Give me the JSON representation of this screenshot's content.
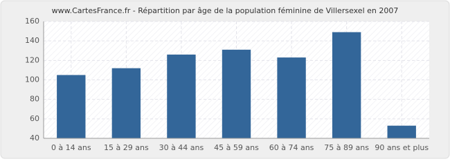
{
  "chart_data": {
    "type": "bar",
    "title": "www.CartesFrance.fr - Répartition par âge de la population féminine de Villersexel en 2007",
    "categories": [
      "0 à 14 ans",
      "15 à 29 ans",
      "30 à 44 ans",
      "45 à 59 ans",
      "60 à 74 ans",
      "75 à 89 ans",
      "90 ans et plus"
    ],
    "values": [
      105,
      112,
      126,
      131,
      123,
      149,
      53
    ],
    "color": "#336699",
    "ylim": [
      40,
      160
    ],
    "yticks": [
      40,
      60,
      80,
      100,
      120,
      140,
      160
    ],
    "grid": true
  }
}
